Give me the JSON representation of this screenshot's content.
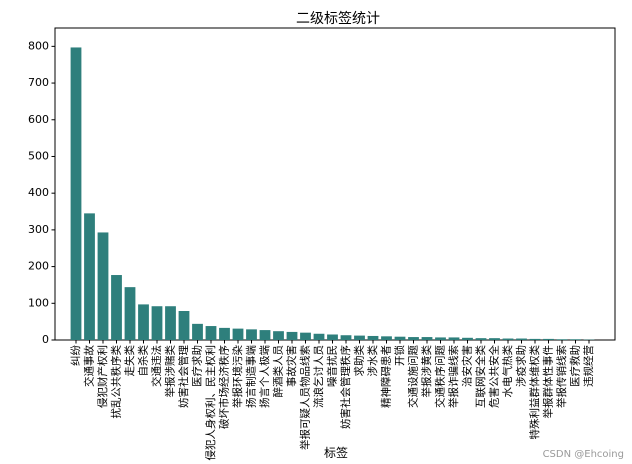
{
  "chart_data": {
    "type": "bar",
    "title": "二级标签统计",
    "xlabel": "标签",
    "ylabel": "",
    "ylim": [
      0,
      850
    ],
    "yticks": [
      0,
      100,
      200,
      300,
      400,
      500,
      600,
      700,
      800
    ],
    "grid": false,
    "bar_color": "#2e7f7c",
    "categories": [
      "纠纷",
      "交通事故",
      "侵犯财产权利",
      "扰乱公共秩序类",
      "走失类",
      "自杀类",
      "交通违法",
      "举报涉赌类",
      "妨害社会管理",
      "医疗求助",
      "侵犯人身权利、民主权利",
      "破坏市场经济秩序",
      "举报环境污染",
      "扬言制造事端",
      "扬言个人极端",
      "醉酒类人员",
      "事故灾害",
      "举报可疑人员物品线索",
      "流浪乞讨人员",
      "噪音扰民",
      "妨害社会管理秩序",
      "求助类",
      "涉水类",
      "精神障碍患者",
      "开锁",
      "交通设施问题",
      "举报涉黄类",
      "交通秩序问题",
      "举报诈骗线索",
      "治安灾害",
      "互联网安全类",
      "危害公共安全",
      "水电气热类",
      "涉疫求助",
      "特殊利益群体维权类",
      "举报群体性事件",
      "举报传销线索",
      "医疗救助",
      "违规经营"
    ],
    "values": [
      797,
      345,
      293,
      177,
      144,
      97,
      92,
      92,
      79,
      44,
      38,
      33,
      31,
      29,
      27,
      24,
      22,
      20,
      17,
      15,
      13,
      12,
      11,
      10,
      9,
      8,
      8,
      7,
      7,
      6,
      5,
      5,
      4,
      4,
      3,
      3,
      2,
      2,
      1
    ]
  },
  "watermark": "CSDN @Ehcoing"
}
